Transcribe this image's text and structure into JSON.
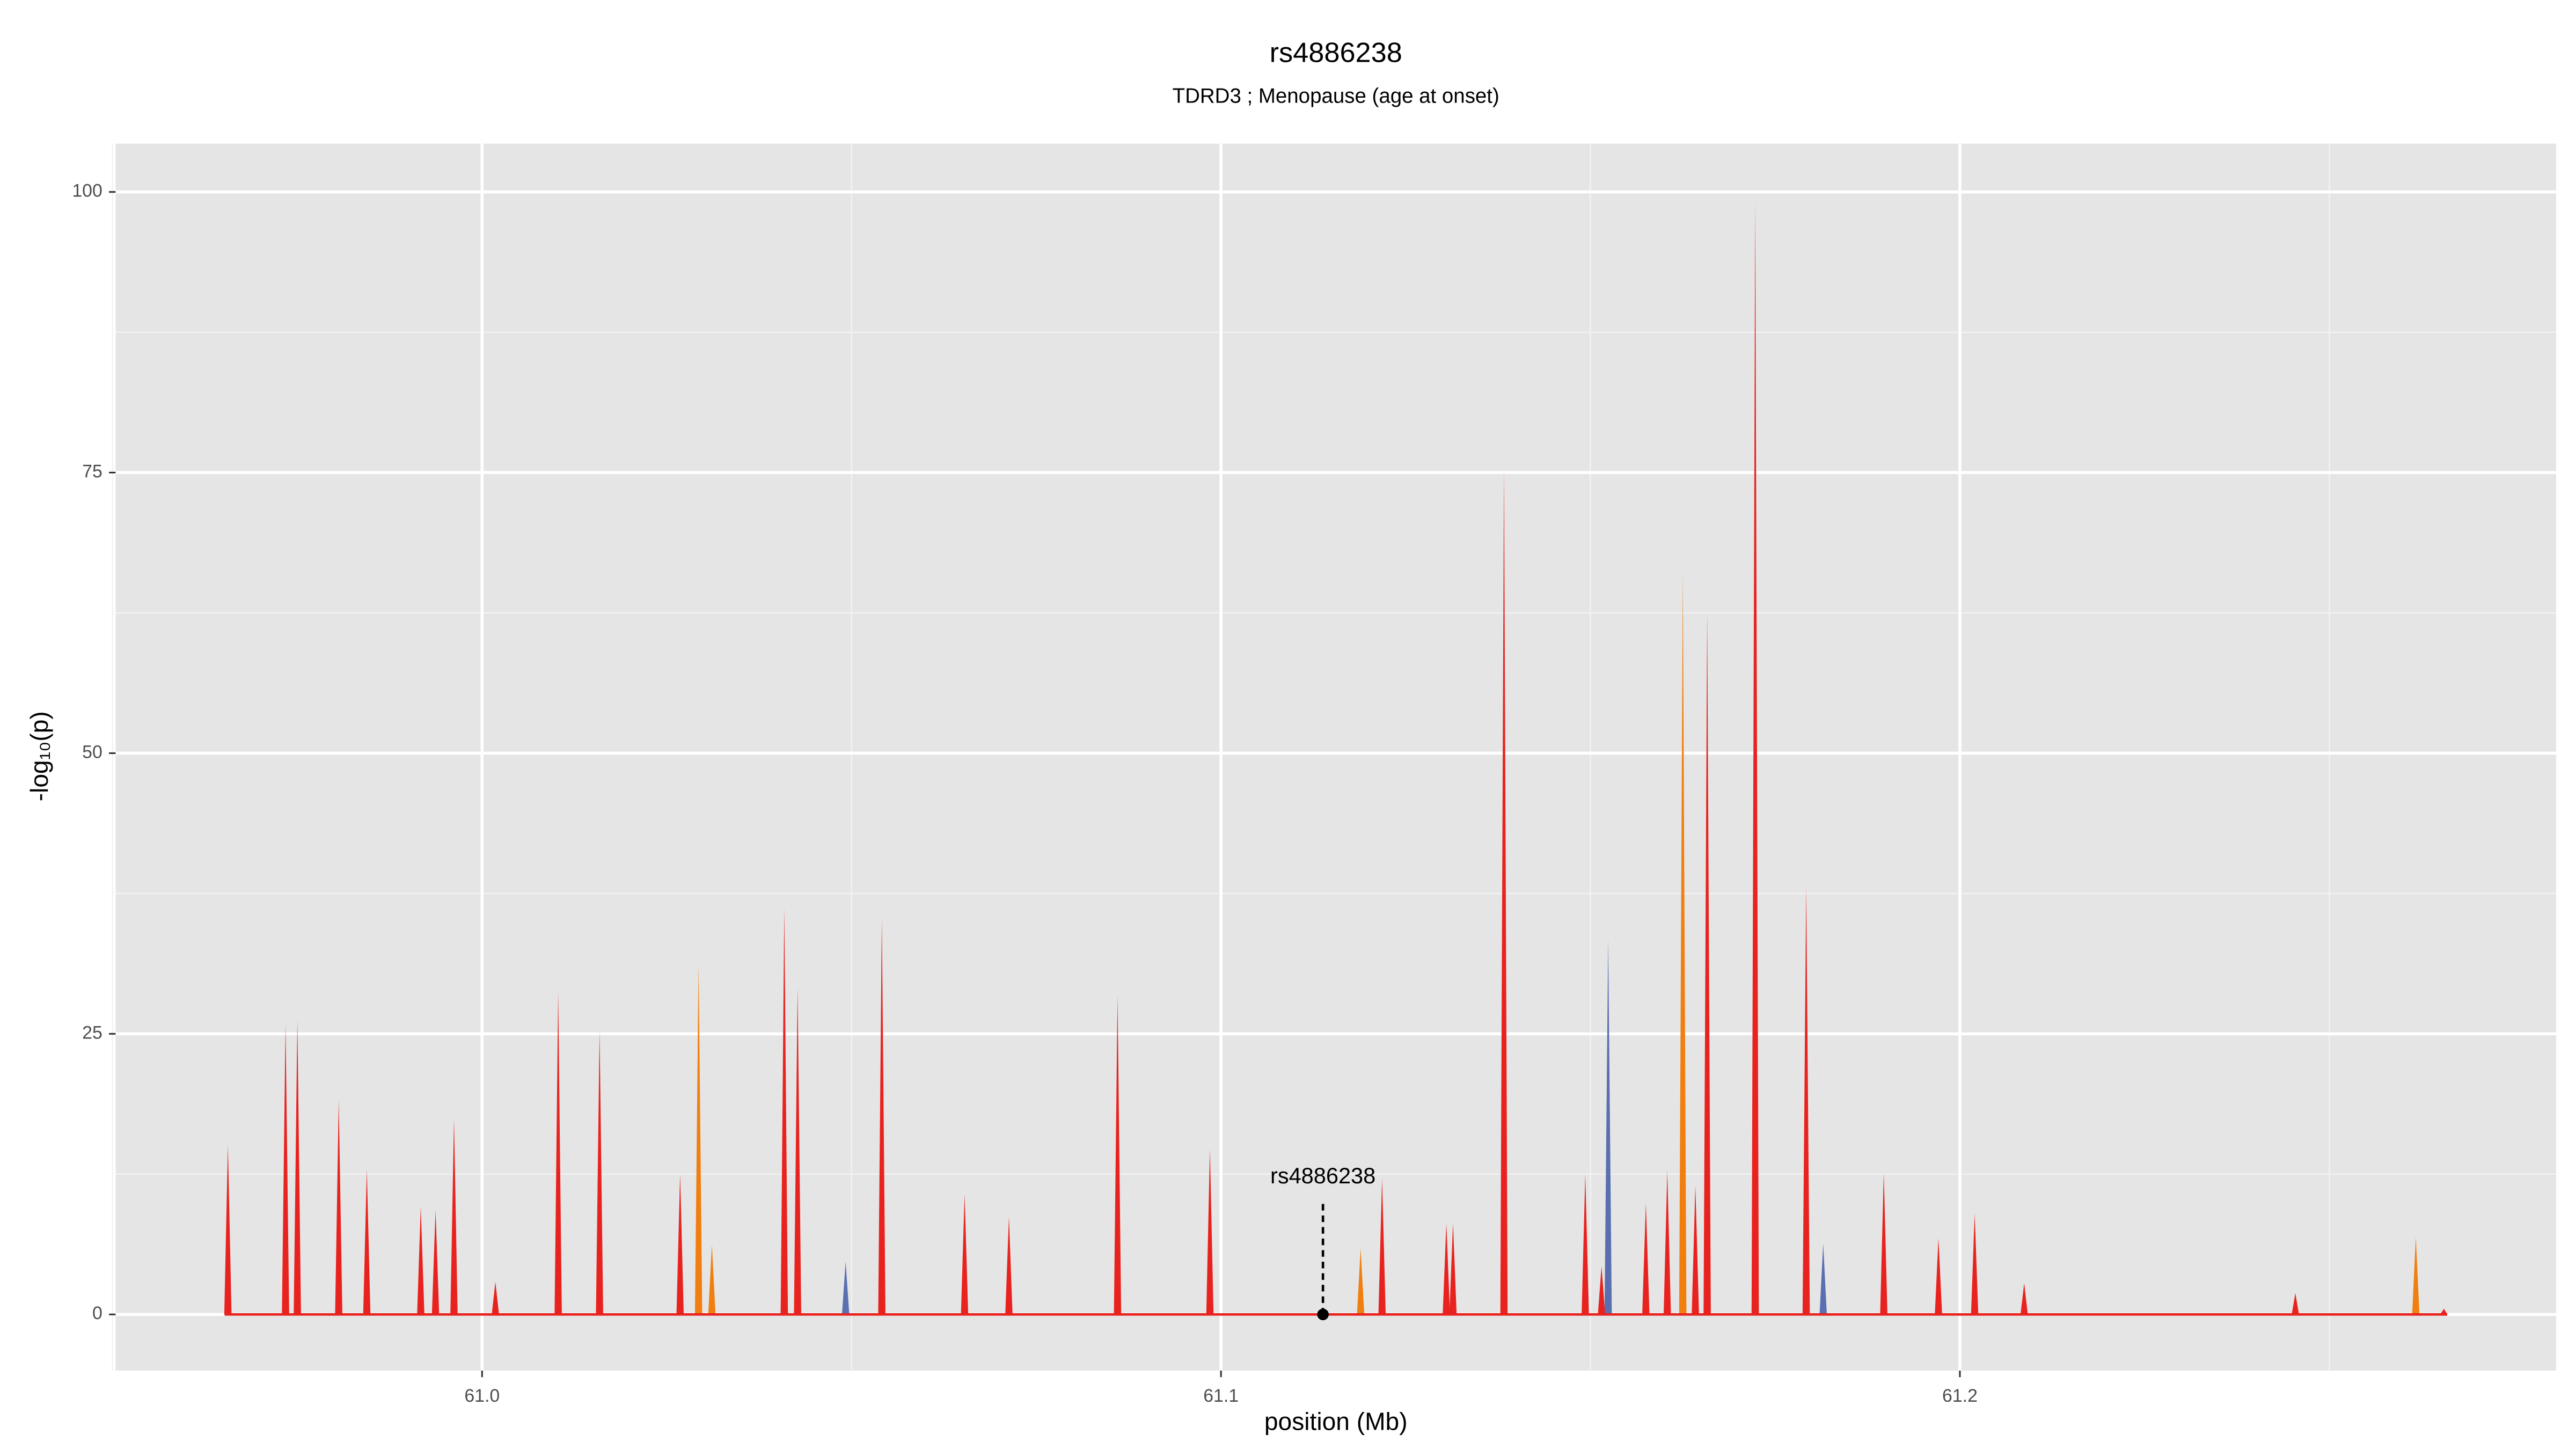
{
  "chart_data": {
    "type": "spike",
    "title": "rs4886238",
    "subtitle": "TDRD3 ; Menopause (age at onset)",
    "xlabel": "position (Mb)",
    "ylabel": "-log₁₀(p)",
    "xlim": [
      60.9504,
      61.2807
    ],
    "ylim": [
      -5,
      104.3
    ],
    "xticks": [
      {
        "value": 61,
        "label": "61.0"
      },
      {
        "value": 61.1,
        "label": "61.1"
      },
      {
        "value": 61.2,
        "label": "61.2"
      }
    ],
    "yticks": [
      0,
      25,
      50,
      75,
      100
    ],
    "xminorticks": [
      60.95,
      61.05,
      61.15,
      61.25
    ],
    "yminorticks": [
      12.5,
      37.5,
      62.5,
      87.5
    ],
    "grid": true,
    "series": [
      {
        "color": "#5a6fb0",
        "x": [
          61.0492,
          61.1524,
          61.1815,
          61.0409,
          61.1723
        ],
        "values": [
          4.7,
          33.4,
          6.3,
          20.5,
          45
        ]
      },
      {
        "color": "#f07f10",
        "x": [
          61.0293,
          61.1189,
          61.1625,
          61.2617,
          61.0311
        ],
        "values": [
          31.2,
          5.9,
          66.0,
          6.9,
          6.2
        ]
      },
      {
        "color": "#e8231f",
        "x": [
          60.9656,
          60.9734,
          60.975,
          60.9806,
          60.9844,
          60.9917,
          60.9937,
          60.9962,
          61.0018,
          61.0103,
          61.0159,
          61.0268,
          61.0409,
          61.0427,
          61.0541,
          61.0653,
          61.0713,
          61.086,
          61.0985,
          61.1218,
          61.1305,
          61.1314,
          61.1383,
          61.1493,
          61.1515,
          61.1575,
          61.1604,
          61.1642,
          61.1658,
          61.1723,
          61.1792,
          61.1897,
          61.1971,
          61.202,
          61.2087,
          61.2454,
          61.2655
        ],
        "values": [
          15.1,
          25.9,
          26.2,
          19.1,
          12.9,
          9.6,
          9.3,
          17.4,
          2.9,
          28.7,
          25.3,
          12.5,
          36.2,
          29.1,
          35.3,
          10.7,
          8.7,
          28.4,
          14.7,
          12.1,
          8.1,
          8.1,
          75.4,
          12.5,
          4.3,
          9.9,
          12.8,
          11.5,
          62.6,
          99.3,
          38.1,
          12.6,
          6.8,
          9.0,
          2.8,
          1.9,
          0.5
        ]
      }
    ],
    "annotation": {
      "text": "rs4886238",
      "x": 61.1138,
      "y": 0,
      "label_y": 12.2
    }
  }
}
